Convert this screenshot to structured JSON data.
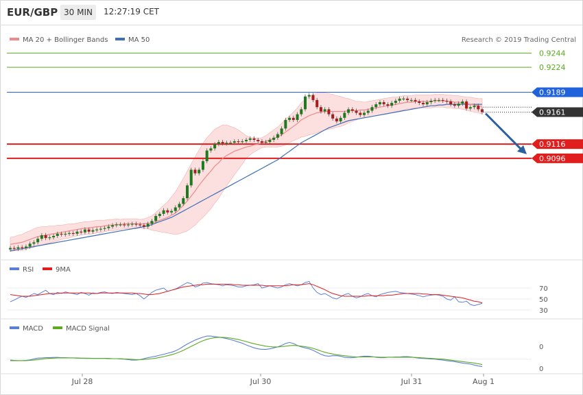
{
  "header": {
    "symbol": "EUR/GBP",
    "timeframe": "30 MIN",
    "time": "12:27:19 CET"
  },
  "legend": {
    "ma20": {
      "label": "MA 20 + Bollinger Bands",
      "color": "#f08a8a"
    },
    "ma50": {
      "label": "MA 50",
      "color": "#3d6fb4"
    },
    "credit": "Research © 2019 Trading Central"
  },
  "rsi_legend": {
    "rsi": "RSI",
    "ma": "9MA"
  },
  "macd_legend": {
    "macd": "MACD",
    "signal": "MACD Signal"
  },
  "chart_data": [
    {
      "type": "candlestick",
      "title": "EUR/GBP",
      "x_labels": [
        "Jul 28",
        "Jul 30",
        "Jul 31",
        "Aug 1"
      ],
      "price_axis": [
        {
          "value": 0.9244,
          "label": "0.9244",
          "color": "#5aab1e",
          "style": "line",
          "kind": "resistance"
        },
        {
          "value": 0.9224,
          "label": "0.9224",
          "color": "#5aab1e",
          "style": "line",
          "kind": "resistance"
        },
        {
          "value": 0.9189,
          "label": "0.9189",
          "color": "#1f62d9",
          "style": "box",
          "kind": "pivot"
        },
        {
          "value": 0.9161,
          "label": "0.9161",
          "color": "#333333",
          "style": "box",
          "kind": "last"
        },
        {
          "value": 0.9116,
          "label": "0.9116",
          "color": "#e01e1e",
          "style": "box",
          "kind": "support"
        },
        {
          "value": 0.9096,
          "label": "0.9096",
          "color": "#e01e1e",
          "style": "box",
          "kind": "support"
        }
      ],
      "close": [
        0.897,
        0.8969,
        0.8971,
        0.897,
        0.8972,
        0.8976,
        0.8978,
        0.8983,
        0.8988,
        0.8984,
        0.8985,
        0.8987,
        0.899,
        0.8989,
        0.899,
        0.8991,
        0.899,
        0.8993,
        0.8992,
        0.8996,
        0.8993,
        0.8995,
        0.8996,
        0.8997,
        0.8998,
        0.9,
        0.9002,
        0.9003,
        0.9003,
        0.9002,
        0.9003,
        0.9004,
        0.9003,
        0.9002,
        0.9,
        0.9004,
        0.9008,
        0.9015,
        0.9018,
        0.9023,
        0.902,
        0.9022,
        0.9027,
        0.9032,
        0.904,
        0.9058,
        0.908,
        0.9075,
        0.908,
        0.9092,
        0.9107,
        0.911,
        0.9116,
        0.9119,
        0.9117,
        0.9118,
        0.9118,
        0.912,
        0.9119,
        0.912,
        0.9122,
        0.9124,
        0.9122,
        0.912,
        0.9118,
        0.9119,
        0.9122,
        0.9125,
        0.913,
        0.9138,
        0.915,
        0.9153,
        0.915,
        0.9158,
        0.9165,
        0.9183,
        0.9185,
        0.9178,
        0.9168,
        0.9162,
        0.9165,
        0.9158,
        0.9152,
        0.9148,
        0.9153,
        0.916,
        0.9165,
        0.9163,
        0.916,
        0.9157,
        0.916,
        0.9163,
        0.9168,
        0.9172,
        0.9175,
        0.9172,
        0.917,
        0.9174,
        0.9177,
        0.918,
        0.918,
        0.9178,
        0.9178,
        0.9176,
        0.9174,
        0.9172,
        0.9175,
        0.9177,
        0.9178,
        0.9178,
        0.9177,
        0.9176,
        0.9172,
        0.917,
        0.9173,
        0.9176,
        0.9166,
        0.9168,
        0.917,
        0.9165,
        0.9161
      ],
      "ma20": [
        0.8975,
        0.8976,
        0.8977,
        0.8978,
        0.898,
        0.8982,
        0.8984,
        0.8986,
        0.8987,
        0.8988,
        0.8989,
        0.899,
        0.8991,
        0.8992,
        0.8993,
        0.8994,
        0.8995,
        0.8996,
        0.8997,
        0.8998,
        0.8998,
        0.8999,
        0.9,
        0.9,
        0.9001,
        0.9002,
        0.9002,
        0.9003,
        0.9003,
        0.9004,
        0.9004,
        0.9004,
        0.9004,
        0.9004,
        0.9004,
        0.9005,
        0.9005,
        0.9007,
        0.9009,
        0.9011,
        0.9013,
        0.9016,
        0.9019,
        0.9024,
        0.903,
        0.9036,
        0.9043,
        0.905,
        0.9058,
        0.9065,
        0.9072,
        0.9078,
        0.9085,
        0.909,
        0.9096,
        0.91,
        0.9103,
        0.9106,
        0.9108,
        0.911,
        0.9112,
        0.9113,
        0.9115,
        0.9116,
        0.9118,
        0.912,
        0.9122,
        0.9124,
        0.9126,
        0.9129,
        0.9133,
        0.9137,
        0.9141,
        0.9145,
        0.915,
        0.9153,
        0.9156,
        0.9158,
        0.916,
        0.9161,
        0.9162,
        0.9162,
        0.9162,
        0.9162,
        0.9162,
        0.9162,
        0.9163,
        0.9163,
        0.9163,
        0.9164,
        0.9164,
        0.9165,
        0.9166,
        0.9167,
        0.9168,
        0.9169,
        0.917,
        0.9171,
        0.9172,
        0.9173,
        0.9174,
        0.9175,
        0.9175,
        0.9176,
        0.9176,
        0.9176,
        0.9176,
        0.9176,
        0.9177,
        0.9177,
        0.9177,
        0.9176,
        0.9176,
        0.9175,
        0.9175,
        0.9174,
        0.9173,
        0.9172,
        0.9171,
        0.917,
        0.9169
      ],
      "bb_half_width": [
        0.001,
        0.001,
        0.0011,
        0.0011,
        0.0012,
        0.0012,
        0.0013,
        0.0013,
        0.0013,
        0.0012,
        0.0012,
        0.0011,
        0.0011,
        0.001,
        0.001,
        0.001,
        0.0009,
        0.0009,
        0.0009,
        0.0009,
        0.0009,
        0.0009,
        0.0009,
        0.0009,
        0.0008,
        0.0008,
        0.0008,
        0.0008,
        0.0007,
        0.0007,
        0.0007,
        0.0007,
        0.0007,
        0.0006,
        0.0007,
        0.0008,
        0.001,
        0.0013,
        0.0016,
        0.0019,
        0.0022,
        0.0026,
        0.003,
        0.0034,
        0.0038,
        0.0042,
        0.0045,
        0.0048,
        0.005,
        0.0052,
        0.0053,
        0.0053,
        0.0052,
        0.005,
        0.0047,
        0.0043,
        0.0038,
        0.0033,
        0.0028,
        0.0022,
        0.0016,
        0.0012,
        0.001,
        0.0008,
        0.0007,
        0.0008,
        0.001,
        0.0012,
        0.0014,
        0.0016,
        0.0018,
        0.0019,
        0.002,
        0.0022,
        0.0024,
        0.0026,
        0.0027,
        0.0028,
        0.0028,
        0.0027,
        0.0026,
        0.0025,
        0.0024,
        0.0022,
        0.0021,
        0.0019,
        0.0017,
        0.0015,
        0.0013,
        0.0012,
        0.0011,
        0.0011,
        0.0011,
        0.0011,
        0.0011,
        0.0011,
        0.0011,
        0.0011,
        0.001,
        0.001,
        0.001,
        0.0009,
        0.0009,
        0.0009,
        0.0009,
        0.0009,
        0.0009,
        0.0009,
        0.0009,
        0.0009,
        0.0009,
        0.0009,
        0.0009,
        0.0009,
        0.0009,
        0.0009,
        0.0009,
        0.001,
        0.001,
        0.001,
        0.0011
      ],
      "ma50": [
        0.8966,
        0.8967,
        0.8968,
        0.8969,
        0.897,
        0.8971,
        0.8972,
        0.8973,
        0.8974,
        0.8975,
        0.8976,
        0.8977,
        0.8978,
        0.8979,
        0.898,
        0.8981,
        0.8982,
        0.8983,
        0.8984,
        0.8985,
        0.8986,
        0.8987,
        0.8988,
        0.8989,
        0.899,
        0.8991,
        0.8992,
        0.8993,
        0.8994,
        0.8995,
        0.8996,
        0.8997,
        0.8998,
        0.8999,
        0.9,
        0.9001,
        0.9003,
        0.9005,
        0.9007,
        0.9009,
        0.9011,
        0.9013,
        0.9016,
        0.9019,
        0.9022,
        0.9025,
        0.9028,
        0.9031,
        0.9034,
        0.9037,
        0.904,
        0.9043,
        0.9046,
        0.9049,
        0.9052,
        0.9055,
        0.9058,
        0.9061,
        0.9064,
        0.9067,
        0.907,
        0.9073,
        0.9076,
        0.9079,
        0.9082,
        0.9085,
        0.9088,
        0.9091,
        0.9094,
        0.9098,
        0.9102,
        0.9106,
        0.911,
        0.9114,
        0.9118,
        0.9121,
        0.9124,
        0.9127,
        0.913,
        0.9133,
        0.9136,
        0.9139,
        0.9141,
        0.9143,
        0.9145,
        0.9147,
        0.9149,
        0.915,
        0.9151,
        0.9152,
        0.9153,
        0.9154,
        0.9155,
        0.9156,
        0.9157,
        0.9158,
        0.9159,
        0.916,
        0.9161,
        0.9162,
        0.9163,
        0.9164,
        0.9165,
        0.9166,
        0.9167,
        0.9168,
        0.9169,
        0.917,
        0.917,
        0.9171,
        0.9171,
        0.9172,
        0.9172,
        0.9172,
        0.9172,
        0.9172,
        0.9172,
        0.9172,
        0.9172,
        0.9172,
        0.9172
      ],
      "price_range": [
        0.896,
        0.9255
      ],
      "forecast_arrow": {
        "from": 0.9161,
        "to": 0.9096,
        "color": "#2b5f9e"
      }
    },
    {
      "type": "line",
      "title": "RSI",
      "yticks": [
        30,
        50,
        70
      ],
      "ylim": [
        20,
        90
      ],
      "series": [
        {
          "name": "RSI",
          "color": "#5b7fd6",
          "values": [
            45,
            48,
            52,
            55,
            53,
            56,
            60,
            58,
            62,
            66,
            60,
            58,
            62,
            60,
            63,
            61,
            60,
            58,
            62,
            60,
            57,
            61,
            60,
            62,
            63,
            61,
            60,
            62,
            61,
            60,
            59,
            58,
            60,
            56,
            50,
            56,
            62,
            66,
            68,
            70,
            64,
            66,
            68,
            72,
            76,
            80,
            78,
            72,
            74,
            79,
            80,
            78,
            77,
            76,
            74,
            76,
            75,
            74,
            72,
            72,
            74,
            75,
            76,
            78,
            70,
            72,
            74,
            72,
            70,
            72,
            76,
            78,
            76,
            74,
            76,
            80,
            82,
            70,
            62,
            58,
            60,
            56,
            52,
            50,
            54,
            58,
            60,
            55,
            52,
            54,
            58,
            60,
            56,
            54,
            58,
            60,
            62,
            63,
            64,
            62,
            61,
            60,
            59,
            58,
            56,
            54,
            56,
            57,
            58,
            57,
            55,
            50,
            48,
            54,
            45,
            44,
            46,
            40,
            38,
            40,
            42
          ]
        },
        {
          "name": "9MA",
          "color": "#e01e1e",
          "values": [
            58,
            57,
            56,
            55,
            55,
            55,
            56,
            57,
            58,
            59,
            60,
            60,
            60,
            61,
            61,
            61,
            61,
            61,
            61,
            61,
            61,
            60,
            60,
            61,
            61,
            61,
            61,
            61,
            61,
            61,
            61,
            61,
            60,
            60,
            59,
            58,
            58,
            59,
            60,
            62,
            64,
            66,
            68,
            70,
            72,
            73,
            74,
            75,
            76,
            76,
            77,
            77,
            77,
            77,
            77,
            77,
            77,
            76,
            76,
            75,
            75,
            75,
            75,
            75,
            75,
            74,
            74,
            74,
            74,
            74,
            74,
            75,
            76,
            76,
            76,
            77,
            78,
            76,
            73,
            70,
            67,
            63,
            60,
            58,
            56,
            55,
            55,
            55,
            55,
            55,
            55,
            56,
            56,
            56,
            56,
            56,
            57,
            57,
            58,
            59,
            60,
            60,
            60,
            60,
            60,
            59,
            59,
            58,
            58,
            58,
            57,
            56,
            55,
            54,
            53,
            52,
            50,
            48,
            46,
            45,
            43
          ]
        }
      ]
    },
    {
      "type": "line",
      "title": "MACD",
      "yticks": [
        0
      ],
      "series": [
        {
          "name": "MACD",
          "color": "#5b7fd6",
          "values": [
            -0.4,
            -0.5,
            -0.6,
            -0.6,
            -0.5,
            -0.3,
            0.1,
            0.4,
            0.5,
            0.6,
            0.6,
            0.7,
            0.7,
            0.6,
            0.6,
            0.5,
            0.5,
            0.4,
            0.4,
            0.3,
            0.3,
            0.3,
            0.3,
            0.3,
            0.3,
            0.2,
            0.2,
            0.2,
            0.1,
            0.0,
            -0.2,
            -0.4,
            -0.4,
            -0.2,
            0.2,
            0.6,
            0.9,
            1.2,
            1.6,
            2.0,
            2.4,
            2.8,
            3.4,
            4.2,
            5.2,
            6.2,
            7.0,
            7.8,
            8.4,
            9.0,
            9.4,
            9.4,
            9.2,
            9.0,
            8.7,
            8.4,
            8.0,
            7.5,
            7.0,
            6.5,
            5.8,
            5.2,
            4.6,
            4.2,
            4.0,
            4.0,
            4.2,
            4.6,
            5.0,
            5.6,
            6.4,
            6.8,
            6.4,
            5.6,
            5.0,
            4.6,
            4.2,
            3.6,
            2.8,
            2.0,
            1.4,
            1.2,
            1.4,
            1.4,
            1.2,
            0.8,
            0.6,
            0.6,
            0.8,
            1.0,
            1.2,
            1.2,
            1.0,
            0.8,
            0.6,
            0.6,
            0.8,
            0.8,
            0.9,
            0.9,
            1.0,
            1.0,
            0.9,
            0.6,
            0.4,
            0.3,
            0.2,
            0.1,
            0.0,
            -0.2,
            -0.4,
            -0.6,
            -0.8,
            -1.0,
            -1.3,
            -1.6,
            -1.8,
            -2.0,
            -2.4,
            -2.8,
            -3.0
          ]
        },
        {
          "name": "MACD Signal",
          "color": "#5aab1e",
          "values": [
            -0.6,
            -0.6,
            -0.6,
            -0.6,
            -0.6,
            -0.5,
            -0.4,
            -0.2,
            0.0,
            0.2,
            0.3,
            0.4,
            0.5,
            0.5,
            0.5,
            0.5,
            0.5,
            0.5,
            0.4,
            0.4,
            0.4,
            0.3,
            0.3,
            0.3,
            0.3,
            0.3,
            0.2,
            0.2,
            0.2,
            0.1,
            0.0,
            -0.1,
            -0.2,
            -0.2,
            -0.1,
            0.0,
            0.2,
            0.4,
            0.7,
            1.0,
            1.4,
            1.8,
            2.3,
            2.9,
            3.6,
            4.4,
            5.2,
            6.0,
            6.8,
            7.5,
            8.1,
            8.5,
            8.8,
            8.9,
            8.9,
            8.8,
            8.6,
            8.3,
            8.0,
            7.6,
            7.2,
            6.7,
            6.3,
            5.9,
            5.6,
            5.3,
            5.1,
            5.0,
            5.0,
            5.1,
            5.3,
            5.5,
            5.6,
            5.5,
            5.3,
            5.1,
            4.8,
            4.4,
            3.9,
            3.3,
            2.8,
            2.4,
            2.1,
            1.8,
            1.6,
            1.4,
            1.2,
            1.0,
            0.9,
            0.9,
            0.9,
            0.9,
            0.9,
            0.9,
            0.8,
            0.8,
            0.8,
            0.8,
            0.8,
            0.8,
            0.8,
            0.8,
            0.8,
            0.7,
            0.6,
            0.5,
            0.4,
            0.3,
            0.2,
            0.1,
            0.0,
            -0.2,
            -0.4,
            -0.6,
            -0.8,
            -1.0,
            -1.2,
            -1.4,
            -1.6,
            -1.9,
            -2.2
          ]
        }
      ]
    }
  ]
}
